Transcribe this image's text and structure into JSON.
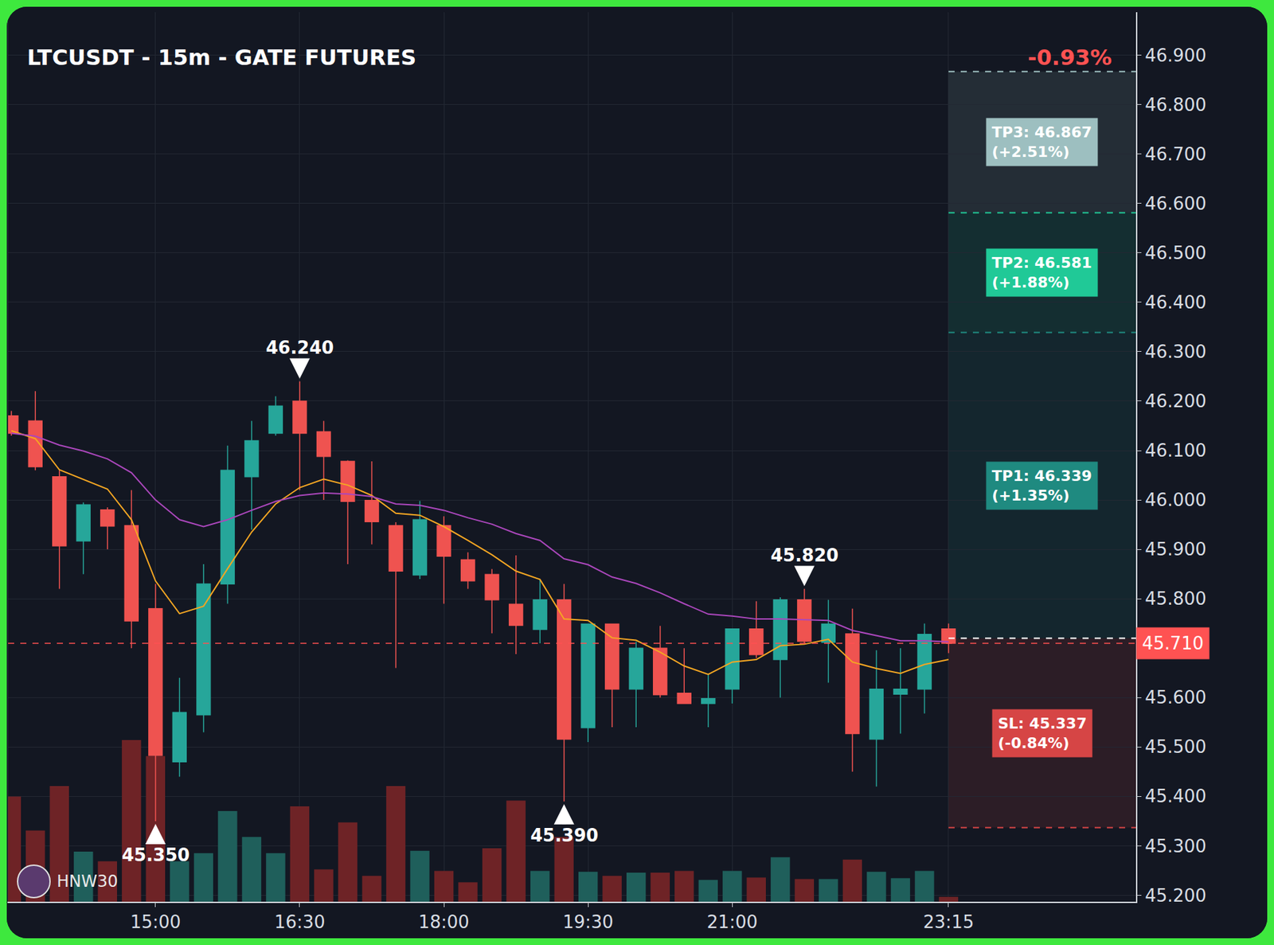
{
  "chart_data": {
    "type": "candlestick",
    "title": "LTCUSDT - 15m - GATE FUTURES",
    "performance_label": "-0.93%",
    "watermark": "HNW30",
    "x": [
      810,
      825,
      840,
      855,
      870,
      885,
      900,
      915,
      930,
      945,
      960,
      975,
      990,
      1005,
      1020,
      1035,
      1050,
      1065,
      1080,
      1095,
      1110,
      1125,
      1140,
      1155,
      1170,
      1185,
      1200,
      1215,
      1230,
      1245,
      1260,
      1275,
      1290,
      1305,
      1320,
      1335,
      1350,
      1365,
      1380,
      1395
    ],
    "open": [
      46.17,
      46.16,
      46.047,
      45.917,
      45.98,
      45.948,
      45.78,
      45.47,
      45.565,
      45.83,
      46.047,
      46.135,
      46.2,
      46.138,
      46.078,
      45.999,
      45.948,
      45.848,
      45.948,
      45.879,
      45.849,
      45.789,
      45.738,
      45.798,
      45.539,
      45.749,
      45.617,
      45.7,
      45.609,
      45.588,
      45.617,
      45.739,
      45.677,
      45.798,
      45.712,
      45.729,
      45.516,
      45.607,
      45.617,
      45.739
    ],
    "high": [
      46.18,
      46.22,
      46.06,
      45.995,
      45.985,
      46.02,
      45.83,
      45.64,
      45.87,
      46.11,
      46.16,
      46.21,
      46.24,
      46.16,
      46.08,
      46.078,
      45.955,
      45.998,
      45.967,
      45.894,
      45.86,
      45.888,
      45.84,
      45.83,
      45.75,
      45.75,
      45.713,
      45.745,
      45.7,
      45.647,
      45.74,
      45.795,
      45.803,
      45.82,
      45.798,
      45.78,
      45.696,
      45.7,
      45.75,
      45.75
    ],
    "low": [
      46.13,
      46.06,
      45.82,
      45.85,
      45.9,
      45.7,
      45.35,
      45.44,
      45.53,
      45.79,
      45.94,
      46.13,
      46.02,
      46.0,
      45.87,
      45.91,
      45.66,
      45.84,
      45.79,
      45.82,
      45.73,
      45.688,
      45.71,
      45.39,
      45.51,
      45.54,
      45.54,
      45.6,
      45.588,
      45.54,
      45.588,
      45.68,
      45.6,
      45.71,
      45.63,
      45.45,
      45.42,
      45.527,
      45.568,
      45.69
    ],
    "close": [
      46.135,
      46.067,
      45.907,
      45.99,
      45.947,
      45.755,
      45.483,
      45.57,
      45.83,
      46.06,
      46.12,
      46.19,
      46.135,
      46.088,
      45.997,
      45.956,
      45.856,
      45.96,
      45.886,
      45.836,
      45.798,
      45.746,
      45.798,
      45.516,
      45.749,
      45.617,
      45.7,
      45.606,
      45.588,
      45.598,
      45.739,
      45.687,
      45.798,
      45.714,
      45.749,
      45.527,
      45.617,
      45.617,
      45.728,
      45.71
    ],
    "colors": [
      "#ef5350",
      "#ef5350",
      "#ef5350",
      "#26a69a",
      "#ef5350",
      "#ef5350",
      "#ef5350",
      "#26a69a",
      "#26a69a",
      "#26a69a",
      "#26a69a",
      "#26a69a",
      "#ef5350",
      "#ef5350",
      "#ef5350",
      "#ef5350",
      "#ef5350",
      "#26a69a",
      "#ef5350",
      "#ef5350",
      "#ef5350",
      "#ef5350",
      "#26a69a",
      "#ef5350",
      "#26a69a",
      "#ef5350",
      "#26a69a",
      "#ef5350",
      "#ef5350",
      "#26a69a",
      "#26a69a",
      "#ef5350",
      "#26a69a",
      "#ef5350",
      "#26a69a",
      "#ef5350",
      "#26a69a",
      "#26a69a",
      "#26a69a",
      "#ef5350"
    ],
    "series": [
      {
        "type": "bar",
        "axis": "y2",
        "values": [
          65,
          44,
          71.5,
          31,
          25,
          100,
          90,
          25,
          30,
          56,
          40,
          30,
          59,
          20,
          49,
          16,
          71.5,
          31.5,
          19,
          12,
          33,
          62.5,
          19,
          40,
          18.5,
          16,
          18,
          18,
          19,
          13.5,
          19,
          15,
          27.5,
          14,
          14,
          26,
          18.5,
          14.5,
          19,
          3
        ],
        "colors": [
          "#6e2326",
          "#6e2326",
          "#6e2326",
          "#1f5f5b",
          "#6e2326",
          "#6e2326",
          "#6e2326",
          "#1f5f5b",
          "#1f5f5b",
          "#1f5f5b",
          "#1f5f5b",
          "#1f5f5b",
          "#6e2326",
          "#6e2326",
          "#6e2326",
          "#6e2326",
          "#6e2326",
          "#1f5f5b",
          "#6e2326",
          "#6e2326",
          "#6e2326",
          "#6e2326",
          "#1f5f5b",
          "#6e2326",
          "#1f5f5b",
          "#6e2326",
          "#1f5f5b",
          "#6e2326",
          "#6e2326",
          "#1f5f5b",
          "#1f5f5b",
          "#6e2326",
          "#1f5f5b",
          "#6e2326",
          "#1f5f5b",
          "#6e2326",
          "#1f5f5b",
          "#1f5f5b",
          "#1f5f5b",
          "#6e2326"
        ]
      },
      {
        "type": "line",
        "color": "#f5a623",
        "values": [
          46.14,
          46.124,
          46.061,
          46.042,
          46.022,
          45.96,
          45.836,
          45.77,
          45.785,
          45.861,
          45.935,
          45.992,
          46.025,
          46.042,
          46.03,
          46.009,
          45.973,
          45.969,
          45.946,
          45.918,
          45.889,
          45.856,
          45.839,
          45.759,
          45.756,
          45.721,
          45.716,
          45.692,
          45.664,
          45.647,
          45.672,
          45.677,
          45.705,
          45.708,
          45.718,
          45.672,
          45.659,
          45.649,
          45.667,
          45.677
        ]
      },
      {
        "type": "line",
        "color": "#ab47bc",
        "values": [
          46.135,
          46.129,
          46.111,
          46.099,
          46.083,
          46.055,
          46.0,
          45.96,
          45.946,
          45.96,
          45.979,
          45.997,
          46.009,
          46.014,
          46.012,
          46.007,
          45.992,
          45.989,
          45.979,
          45.964,
          45.951,
          45.932,
          45.918,
          45.881,
          45.869,
          45.844,
          45.831,
          45.812,
          45.79,
          45.769,
          45.765,
          45.759,
          45.759,
          45.757,
          45.756,
          45.736,
          45.726,
          45.715,
          45.715,
          45.713
        ]
      }
    ],
    "xlim": [
      808,
      1512
    ],
    "xticks": [
      {
        "value": 900,
        "label": "15:00"
      },
      {
        "value": 990,
        "label": "16:30"
      },
      {
        "value": 1080,
        "label": "18:00"
      },
      {
        "value": 1170,
        "label": "19:30"
      },
      {
        "value": 1260,
        "label": "21:00"
      },
      {
        "value": 1395,
        "label": "23:15"
      }
    ],
    "ylim": [
      45.187,
      46.987
    ],
    "yticks": [
      {
        "value": 45.2,
        "label": "45.200"
      },
      {
        "value": 45.3,
        "label": "45.300"
      },
      {
        "value": 45.4,
        "label": "45.400"
      },
      {
        "value": 45.5,
        "label": "45.500"
      },
      {
        "value": 45.6,
        "label": "45.600"
      },
      {
        "value": 45.8,
        "label": "45.800"
      },
      {
        "value": 45.9,
        "label": "45.900"
      },
      {
        "value": 46.0,
        "label": "46.000"
      },
      {
        "value": 46.1,
        "label": "46.100"
      },
      {
        "value": 46.2,
        "label": "46.200"
      },
      {
        "value": 46.3,
        "label": "46.300"
      },
      {
        "value": 46.4,
        "label": "46.400"
      },
      {
        "value": 46.5,
        "label": "46.500"
      },
      {
        "value": 46.6,
        "label": "46.600"
      },
      {
        "value": 46.7,
        "label": "46.700"
      },
      {
        "value": 46.8,
        "label": "46.800"
      },
      {
        "value": 46.9,
        "label": "46.900"
      }
    ],
    "y2lim": [
      0,
      550
    ],
    "grid": true,
    "annotations": [
      {
        "x": 990,
        "y": 46.24,
        "text": "46.240",
        "marker": "arrow-down"
      },
      {
        "x": 900,
        "y": 45.35,
        "text": "45.350",
        "marker": "arrow-up"
      },
      {
        "x": 1155,
        "y": 45.39,
        "text": "45.390",
        "marker": "arrow-up"
      },
      {
        "x": 1305,
        "y": 45.82,
        "text": "45.820",
        "marker": "arrow-down"
      }
    ],
    "entry": 45.72,
    "last_price": {
      "value": 45.71,
      "label": "45.710",
      "color": "#ff5252"
    },
    "levels": [
      {
        "text": "TP3: 46.867",
        "change": "(+2.51%)",
        "value": 46.867,
        "color": "#9dbfc0"
      },
      {
        "text": "TP2: 46.581",
        "change": "(+1.88%)",
        "value": 46.581,
        "color": "#20c997"
      },
      {
        "text": "TP1: 46.339",
        "change": "(+1.35%)",
        "value": 46.339,
        "color": "#1f8a80"
      },
      {
        "text": "SL: 45.337",
        "change": "(-0.84%)",
        "value": 45.337,
        "color": "#d64545"
      }
    ]
  }
}
